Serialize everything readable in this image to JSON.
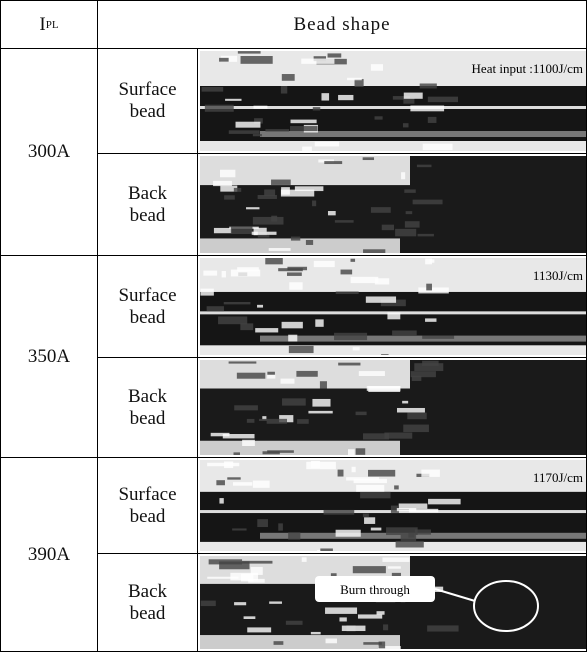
{
  "header": {
    "symbol": "I",
    "subscript": "PL",
    "title": "Bead shape"
  },
  "groups": [
    {
      "current": "300A",
      "rows": [
        {
          "label": "Surface bead",
          "annotation": "Heat input :1100J/cm"
        },
        {
          "label": "Back bead"
        }
      ]
    },
    {
      "current": "350A",
      "rows": [
        {
          "label": "Surface bead",
          "annotation": "1130J/cm"
        },
        {
          "label": "Back bead"
        }
      ]
    },
    {
      "current": "390A",
      "rows": [
        {
          "label": "Surface bead",
          "annotation": "1170J/cm"
        },
        {
          "label": "Back bead",
          "annotation": "Burn through"
        }
      ]
    }
  ]
}
